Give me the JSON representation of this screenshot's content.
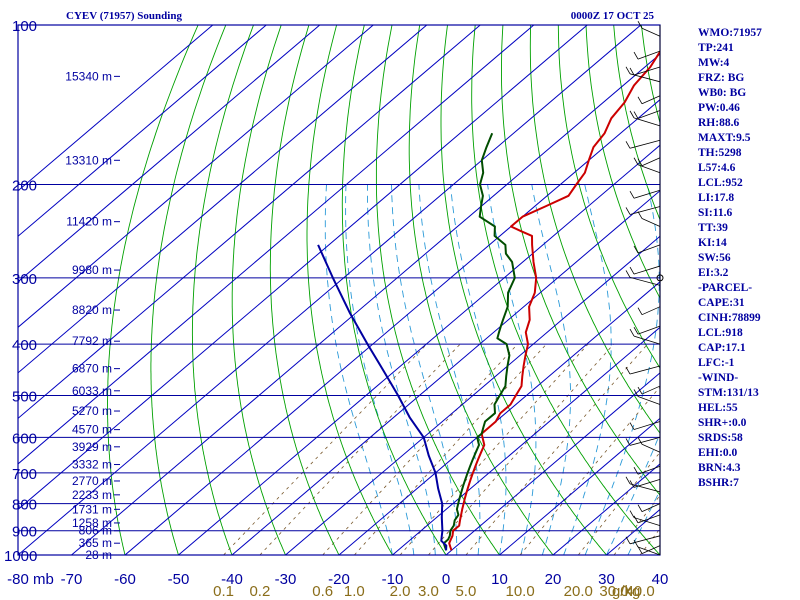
{
  "header": {
    "station": "CYEV (71957) Sounding",
    "time": "0000Z 17 OCT 25"
  },
  "chart_data": {
    "type": "line",
    "title": "CYEV (71957) Sounding",
    "pressure_unit": "mb",
    "mixing_ratio_unit": "g/kg",
    "pressure_levels": [
      1000,
      900,
      800,
      700,
      600,
      500,
      400,
      300,
      200,
      100
    ],
    "pressure_tick_labels": [
      "1000",
      "900",
      "800",
      "700",
      "600",
      "500",
      "400",
      "300",
      "200",
      "100"
    ],
    "temperature_ticks": [
      -80,
      -70,
      -60,
      -50,
      -40,
      -30,
      -20,
      -10,
      0,
      10,
      20,
      30,
      40
    ],
    "temperature_tick_labels": [
      "-80",
      "-70",
      "-60",
      "-50",
      "-40",
      "-30",
      "-20",
      "-10",
      "0",
      "10",
      "20",
      "30",
      "40"
    ],
    "x_range": [
      -80,
      40
    ],
    "y_range": [
      1000,
      100
    ],
    "y_scale": "log",
    "grid": true,
    "heights": [
      {
        "p": 1000,
        "label": "28 m"
      },
      {
        "p": 950,
        "label": "365 m"
      },
      {
        "p": 900,
        "label": "806 m"
      },
      {
        "p": 870,
        "label": "1258 m"
      },
      {
        "p": 820,
        "label": "1731 m"
      },
      {
        "p": 770,
        "label": "2233 m"
      },
      {
        "p": 725,
        "label": "2770 m"
      },
      {
        "p": 675,
        "label": "3332 m"
      },
      {
        "p": 625,
        "label": "3929 m"
      },
      {
        "p": 580,
        "label": "4570 m"
      },
      {
        "p": 535,
        "label": "5270 m"
      },
      {
        "p": 490,
        "label": "6033 m"
      },
      {
        "p": 445,
        "label": "6870 m"
      },
      {
        "p": 395,
        "label": "7792 m"
      },
      {
        "p": 345,
        "label": "8820 m"
      },
      {
        "p": 290,
        "label": "9980 m"
      },
      {
        "p": 235,
        "label": "11420 m"
      },
      {
        "p": 180,
        "label": "13310 m"
      },
      {
        "p": 125,
        "label": "15340 m"
      }
    ],
    "mixing_ratio_labels": [
      "0.1",
      "0.2",
      "0.6",
      "1.0",
      "2.0",
      "3.0",
      "5.0",
      "10.0",
      "20.0",
      "30.0",
      "40.0"
    ],
    "series": [
      {
        "role": "temperature",
        "color": "#cc0000",
        "points": [
          [
            980,
            0
          ],
          [
            965,
            -1
          ],
          [
            950,
            -2
          ],
          [
            935,
            -2.5
          ],
          [
            920,
            -3
          ],
          [
            900,
            -4
          ],
          [
            880,
            -4
          ],
          [
            860,
            -5
          ],
          [
            840,
            -6
          ],
          [
            820,
            -7
          ],
          [
            800,
            -8
          ],
          [
            780,
            -9
          ],
          [
            760,
            -10
          ],
          [
            740,
            -11
          ],
          [
            720,
            -12
          ],
          [
            700,
            -13
          ],
          [
            680,
            -14
          ],
          [
            660,
            -15
          ],
          [
            640,
            -16
          ],
          [
            620,
            -17
          ],
          [
            600,
            -19
          ],
          [
            590,
            -20
          ],
          [
            575,
            -20
          ],
          [
            560,
            -20
          ],
          [
            540,
            -21
          ],
          [
            520,
            -21
          ],
          [
            500,
            -22
          ],
          [
            480,
            -23
          ],
          [
            460,
            -25
          ],
          [
            440,
            -27
          ],
          [
            420,
            -29
          ],
          [
            400,
            -31
          ],
          [
            380,
            -34
          ],
          [
            360,
            -36
          ],
          [
            340,
            -39
          ],
          [
            320,
            -41
          ],
          [
            300,
            -44
          ],
          [
            280,
            -48
          ],
          [
            260,
            -52
          ],
          [
            250,
            -54
          ],
          [
            245,
            -57
          ],
          [
            240,
            -60
          ],
          [
            230,
            -60
          ],
          [
            220,
            -58
          ],
          [
            210,
            -56
          ],
          [
            200,
            -57
          ],
          [
            190,
            -58
          ],
          [
            180,
            -60
          ],
          [
            170,
            -62
          ],
          [
            160,
            -63
          ],
          [
            150,
            -65
          ],
          [
            140,
            -66
          ],
          [
            130,
            -68
          ],
          [
            120,
            -69
          ],
          [
            110,
            -71
          ],
          [
            100,
            -72
          ]
        ]
      },
      {
        "role": "dewpoint",
        "color": "#004d00",
        "points": [
          [
            980,
            -1
          ],
          [
            965,
            -2
          ],
          [
            950,
            -3
          ],
          [
            935,
            -3
          ],
          [
            920,
            -3.5
          ],
          [
            900,
            -4.5
          ],
          [
            880,
            -5
          ],
          [
            860,
            -6
          ],
          [
            840,
            -6.5
          ],
          [
            820,
            -8
          ],
          [
            800,
            -9
          ],
          [
            780,
            -10
          ],
          [
            760,
            -11
          ],
          [
            740,
            -12
          ],
          [
            720,
            -13
          ],
          [
            700,
            -14
          ],
          [
            680,
            -15
          ],
          [
            660,
            -16
          ],
          [
            640,
            -17
          ],
          [
            620,
            -18
          ],
          [
            600,
            -20
          ],
          [
            590,
            -20
          ],
          [
            575,
            -21
          ],
          [
            560,
            -22
          ],
          [
            540,
            -22
          ],
          [
            520,
            -24
          ],
          [
            500,
            -25
          ],
          [
            480,
            -26
          ],
          [
            460,
            -28
          ],
          [
            440,
            -30
          ],
          [
            420,
            -32
          ],
          [
            400,
            -35
          ],
          [
            390,
            -38
          ],
          [
            380,
            -39
          ],
          [
            370,
            -40
          ],
          [
            360,
            -41
          ],
          [
            340,
            -43
          ],
          [
            320,
            -46
          ],
          [
            300,
            -48
          ],
          [
            280,
            -52
          ],
          [
            270,
            -55
          ],
          [
            260,
            -57
          ],
          [
            250,
            -61
          ],
          [
            240,
            -63
          ],
          [
            230,
            -68
          ],
          [
            220,
            -70
          ],
          [
            210,
            -72
          ],
          [
            200,
            -75
          ],
          [
            190,
            -77
          ],
          [
            180,
            -80
          ],
          [
            170,
            -82
          ],
          [
            160,
            -84
          ]
        ]
      },
      {
        "role": "parcel",
        "color": "#0000a0",
        "points": [
          [
            980,
            -1
          ],
          [
            960,
            -2
          ],
          [
            940,
            -4
          ],
          [
            920,
            -5
          ],
          [
            900,
            -6
          ],
          [
            850,
            -9
          ],
          [
            800,
            -12
          ],
          [
            750,
            -16
          ],
          [
            700,
            -20
          ],
          [
            650,
            -25
          ],
          [
            600,
            -30
          ],
          [
            550,
            -37
          ],
          [
            500,
            -44
          ],
          [
            450,
            -52
          ],
          [
            400,
            -61
          ],
          [
            350,
            -71
          ],
          [
            300,
            -82
          ],
          [
            260,
            -92
          ]
        ]
      }
    ]
  },
  "indices": [
    "WMO:71957",
    "TP:241",
    "MW:4",
    "FRZ: BG",
    "WB0: BG",
    "PW:0.46",
    "RH:88.6",
    "MAXT:9.5",
    "TH:5298",
    "L57:4.6",
    "LCL:952",
    "LI:17.8",
    "SI:11.6",
    "TT:39",
    "KI:14",
    "SW:56",
    "EI:3.2",
    "-PARCEL-",
    "CAPE:31",
    "CINH:78899",
    "LCL:918",
    "CAP:17.1",
    "LFC:-1",
    "-WIND-",
    "STM:131/13",
    "HEL:55",
    "SHR+:0.0",
    "SRDS:58",
    "EHI:0.0",
    "BRN:4.3",
    "BSHR:7"
  ],
  "colors": {
    "axis": "#0000a0",
    "isotherm": "#0000c0",
    "dry_adiabat": "#00a000",
    "moist_adiabat": "#2b9ad8",
    "mixing_ratio": "#7a5a2e",
    "mixing_label": "#8a6d1a"
  }
}
